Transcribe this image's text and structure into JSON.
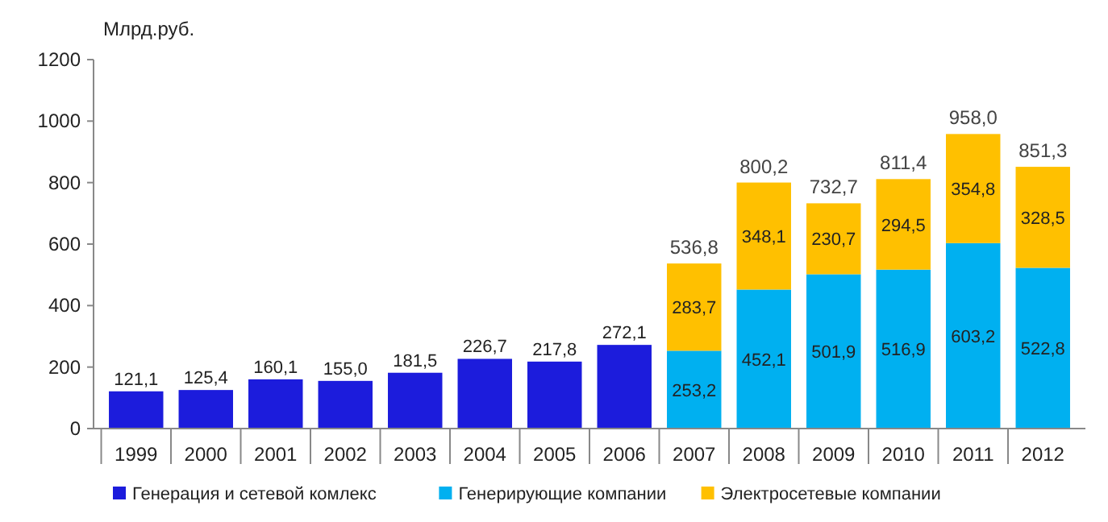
{
  "chart_data": {
    "type": "bar",
    "stacked": true,
    "ylabel": "Млрд.руб.",
    "categories": [
      "1999",
      "2000",
      "2001",
      "2002",
      "2003",
      "2004",
      "2005",
      "2006",
      "2007",
      "2008",
      "2009",
      "2010",
      "2011",
      "2012"
    ],
    "ylim": [
      0,
      1200
    ],
    "yticks": [
      0,
      200,
      400,
      600,
      800,
      1000,
      1200
    ],
    "grid": false,
    "legend": "bottom",
    "series": [
      {
        "name": "Генерация и сетевой комлекс",
        "color": "#1c1cdc",
        "values": [
          121.1,
          125.4,
          160.1,
          155.0,
          181.5,
          226.7,
          217.8,
          272.1,
          null,
          null,
          null,
          null,
          null,
          null
        ],
        "value_labels": [
          "121,1",
          "125,4",
          "160,1",
          "155,0",
          "181,5",
          "226,7",
          "217,8",
          "272,1",
          null,
          null,
          null,
          null,
          null,
          null
        ]
      },
      {
        "name": "Генерирующие компании",
        "color": "#00b0f0",
        "values": [
          null,
          null,
          null,
          null,
          null,
          null,
          null,
          null,
          253.2,
          452.1,
          501.9,
          516.9,
          603.2,
          522.8
        ],
        "value_labels": [
          null,
          null,
          null,
          null,
          null,
          null,
          null,
          null,
          "253,2",
          "452,1",
          "501,9",
          "516,9",
          "603,2",
          "522,8"
        ]
      },
      {
        "name": "Электросетевые компании",
        "color": "#ffc000",
        "values": [
          null,
          null,
          null,
          null,
          null,
          null,
          null,
          null,
          283.7,
          348.1,
          230.7,
          294.5,
          354.8,
          328.5
        ],
        "value_labels": [
          null,
          null,
          null,
          null,
          null,
          null,
          null,
          null,
          "283,7",
          "348,1",
          "230,7",
          "294,5",
          "354,8",
          "328,5"
        ]
      }
    ],
    "totals": [
      null,
      null,
      null,
      null,
      null,
      null,
      null,
      null,
      "536,8",
      "800,2",
      "732,7",
      "811,4",
      "958,0",
      "851,3"
    ]
  }
}
